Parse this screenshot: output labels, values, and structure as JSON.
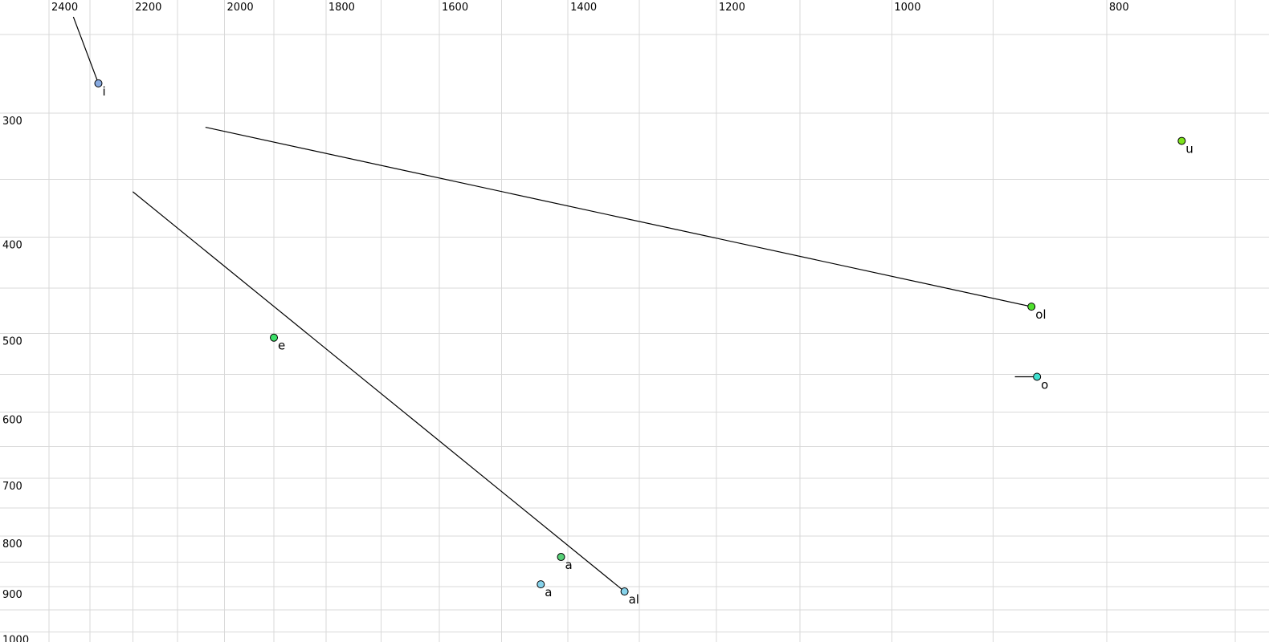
{
  "chart_data": {
    "type": "scatter",
    "title": "",
    "description": "F1/F2 vowel formant plot; F2 on top axis (reversed, log scale), F1 on left axis (downward, log scale), gridlines every 100 Hz (x) and 50 Hz (y), trajectory lines ending at labelled vowel points",
    "grid": true,
    "legend": null,
    "colors": {
      "background": "#ffffff",
      "grid": "#d9d9d9",
      "trajectory_line": "#000000",
      "point_outline": "#000000",
      "tick_text": "#000000"
    },
    "x_axis": {
      "position": "top",
      "scale": "log",
      "reversed": true,
      "unit": "Hz",
      "visible_range": [
        2526,
        673
      ],
      "major_ticks": [
        2400,
        2200,
        2000,
        1800,
        1600,
        1400,
        1200,
        1000,
        800
      ],
      "minor_ticks": [
        2300,
        2100,
        1900,
        1700,
        1500,
        1300,
        1100,
        900,
        700
      ]
    },
    "y_axis": {
      "position": "left",
      "scale": "log",
      "increases_downward": true,
      "unit": "Hz",
      "visible_range": [
        231,
        1023
      ],
      "major_ticks": [
        300,
        400,
        500,
        600,
        700,
        800,
        900,
        1000
      ],
      "minor_ticks": [
        250,
        350,
        450,
        550,
        650,
        750,
        850,
        950
      ]
    },
    "points": [
      {
        "label": "i",
        "f2_hz": 2280,
        "f1_hz": 280,
        "fill": "#88aae0",
        "label_color": "#000000",
        "trajectory_from": {
          "f2_hz": 2340,
          "f1_hz": 240
        }
      },
      {
        "label": "u",
        "f2_hz": 740,
        "f1_hz": 320,
        "fill": "#7de31c",
        "label_color": "#000000",
        "trajectory_from": null
      },
      {
        "label": "e",
        "f2_hz": 1900,
        "f1_hz": 505,
        "fill": "#3ce169",
        "label_color": "#000000",
        "trajectory_from": null
      },
      {
        "label": "ol",
        "f2_hz": 865,
        "f1_hz": 470,
        "fill": "#4fe02e",
        "label_color": "#000000",
        "trajectory_from": {
          "f2_hz": 2040,
          "f1_hz": 310
        }
      },
      {
        "label": "o",
        "f2_hz": 860,
        "f1_hz": 553,
        "fill": "#40e0d0",
        "label_color": "#000000",
        "trajectory_from": {
          "f2_hz": 880,
          "f1_hz": 553
        }
      },
      {
        "label": "a",
        "f2_hz": 1410,
        "f1_hz": 840,
        "fill": "#57d077",
        "label_color": "#8a8a8a",
        "trajectory_from": null
      },
      {
        "label": "a",
        "f2_hz": 1440,
        "f1_hz": 895,
        "fill": "#86d2ea",
        "label_color": "#000000",
        "trajectory_from": null
      },
      {
        "label": "al",
        "f2_hz": 1320,
        "f1_hz": 910,
        "fill": "#86d2ea",
        "label_color": "#000000",
        "trajectory_from": {
          "f2_hz": 2200,
          "f1_hz": 360
        }
      }
    ]
  }
}
